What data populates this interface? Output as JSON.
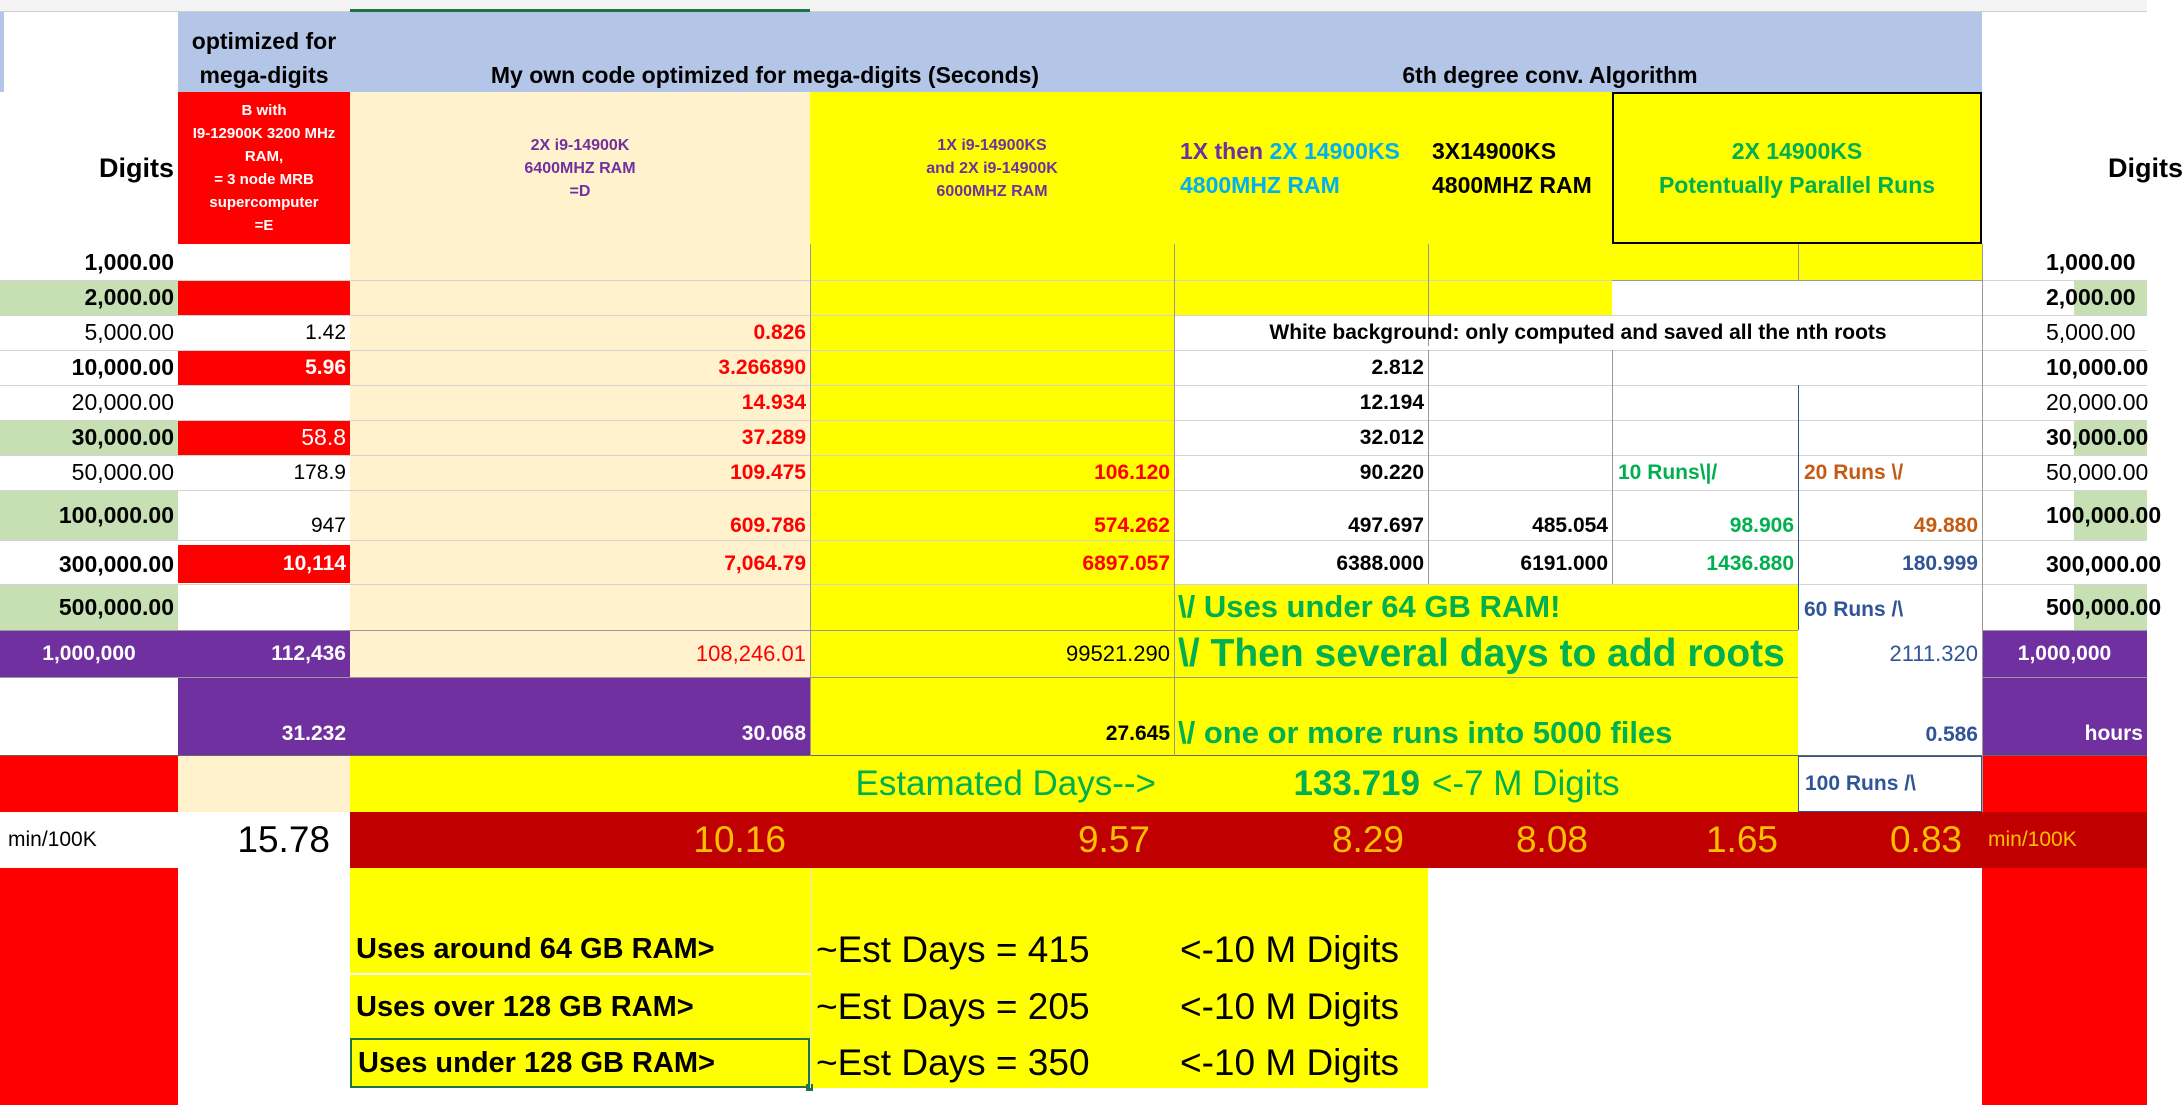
{
  "colors": {
    "header_blue": "#b4c6e7",
    "yellow": "#ffff00",
    "red": "#ff0000",
    "light_green": "#c6e0b4",
    "purple": "#7030a0",
    "cream": "#fff2cc",
    "dark_red": "#c00000",
    "green_text": "#00b050",
    "red_text": "#ff0000",
    "purple_text": "#7030a0",
    "blue_text": "#2f5597",
    "orange_text": "#c55a11"
  },
  "header": {
    "col_b_top": "optimized for",
    "col_b_bottom": "mega-digits",
    "main_title": "My own code optimized for mega-digits  (Seconds)",
    "conv_title": "6th degree conv. Algorithm"
  },
  "subheaders": {
    "digits_left": "Digits",
    "digits_right": "Digits",
    "col_b": [
      "B with",
      "I9-12900K 3200 MHz",
      "RAM,",
      "= 3 node MRB",
      "supercomputer",
      "=E"
    ],
    "col_d": [
      "2X i9-14900K",
      "6400MHZ RAM",
      "=D"
    ],
    "col_e": [
      "1X i9-14900KS",
      "and 2X i9-14900K",
      "6000MHZ RAM"
    ],
    "col_f_part1": "1X then ",
    "col_f_part2": "2X 14900KS",
    "col_f_line2": "4800MHZ RAM",
    "col_g_line1": "3X14900KS",
    "col_g_line2": "4800MHZ RAM",
    "col_hi_line1": "2X 14900KS",
    "col_hi_line2": "Potentually Parallel Runs"
  },
  "rows": {
    "r1000": {
      "digits": "1,000.00",
      "digits_right": "1,000.00"
    },
    "r2000": {
      "digits": "2,000.00",
      "digits_right": "2,000.00"
    },
    "r5000": {
      "digits": "5,000.00",
      "b": "1.42",
      "d": "0.826",
      "note": "White background: only computed and saved all the nth roots",
      "digits_right": "5,000.00"
    },
    "r10000": {
      "digits": "10,000.00",
      "b": "5.96",
      "d": "3.266890",
      "f": "2.812",
      "digits_right": "10,000.00"
    },
    "r20000": {
      "digits": "20,000.00",
      "d": "14.934",
      "f": "12.194",
      "digits_right": "20,000.00"
    },
    "r30000": {
      "digits": "30,000.00",
      "b": "58.8",
      "d": "37.289",
      "f": "32.012",
      "digits_right": "30,000.00"
    },
    "r50000": {
      "digits": "50,000.00",
      "b": "178.9",
      "d": "109.475",
      "e": "106.120",
      "f": "90.220",
      "h": "10 Runs\\|/",
      "i": "20 Runs   \\/",
      "digits_right": "50,000.00"
    },
    "r100000": {
      "digits": "100,000.00",
      "b": "947",
      "d": "609.786",
      "e": "574.262",
      "f": "497.697",
      "g": "485.054",
      "h": "98.906",
      "i": "49.880",
      "digits_right": "100,000.00"
    },
    "r300000": {
      "digits": "300,000.00",
      "b": "10,114",
      "d": "7,064.79",
      "e": "6897.057",
      "f": "6388.000",
      "g": "6191.000",
      "h": "1436.880",
      "i": "180.999",
      "digits_right": "300,000.00"
    },
    "r500000": {
      "digits": "500,000.00",
      "f": "\\/ Uses under 64 GB RAM!",
      "i": "60 Runs    /\\",
      "digits_right": "500,000.00"
    },
    "r1m": {
      "digits": "1,000,000",
      "b": "112,436",
      "d": "108,246.01",
      "e": "99521.290",
      "f": "\\/ Then several days to add roots",
      "i": "2111.320",
      "digits_right": "1,000,000"
    },
    "rhours": {
      "b": "31.232",
      "d": "30.068",
      "e": "27.645",
      "f": "\\/  one or more runs into 5000 files",
      "i": "0.586",
      "digits_right": "hours"
    }
  },
  "estimate": {
    "label": "Estamated Days-->",
    "value": "133.719",
    "suffix": "<-7  M Digits",
    "runs": "100 Runs    /\\"
  },
  "min_row": {
    "label_left": "min/100K",
    "b": "15.78",
    "d": "10.16",
    "e": "9.57",
    "f": "8.29",
    "g": "8.08",
    "h": "1.65",
    "i": "0.83",
    "label_right": "min/100K"
  },
  "ram_rows": [
    {
      "label": "Uses around 64 GB RAM>",
      "est": "~Est Days = 415",
      "digits": "<-10 M Digits"
    },
    {
      "label": "Uses over 128 GB RAM>",
      "est": "~Est Days = 205",
      "digits": "<-10 M Digits"
    },
    {
      "label": "Uses under 128 GB RAM>",
      "est": "~Est Days = 350",
      "digits": "<-10 M Digits"
    }
  ]
}
